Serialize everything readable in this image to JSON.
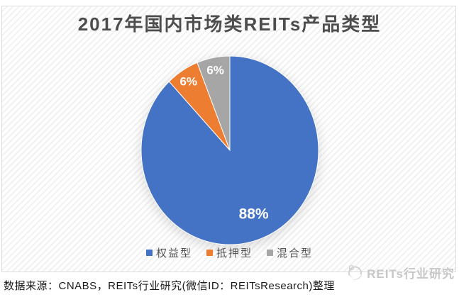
{
  "title": "2017年国内市场类REITs产品类型",
  "chart_data": {
    "type": "pie",
    "title": "2017年国内市场类REITs产品类型",
    "start_angle_deg": 0,
    "direction": "clockwise",
    "legend_position": "bottom",
    "slices": [
      {
        "label": "权益型",
        "value": 88,
        "pct_label": "88%",
        "color": "#4472C4"
      },
      {
        "label": "抵押型",
        "value": 6,
        "pct_label": "6%",
        "color": "#ED7D31"
      },
      {
        "label": "混合型",
        "value": 6,
        "pct_label": "6%",
        "color": "#A6A6A6"
      }
    ]
  },
  "footer": {
    "source_text": "数据来源：CNABS，REITs行业研究(微信ID：REITsResearch)整理"
  },
  "watermark": {
    "text": "REITs行业研究",
    "logo": "reits-logo-icon",
    "color": "#c7c7c7"
  },
  "colors": {
    "title_text": "#4d4d4d",
    "panel_border": "#dcdcdc",
    "panel_stripe": "#f1f1f1",
    "legend_text": "#555555"
  }
}
